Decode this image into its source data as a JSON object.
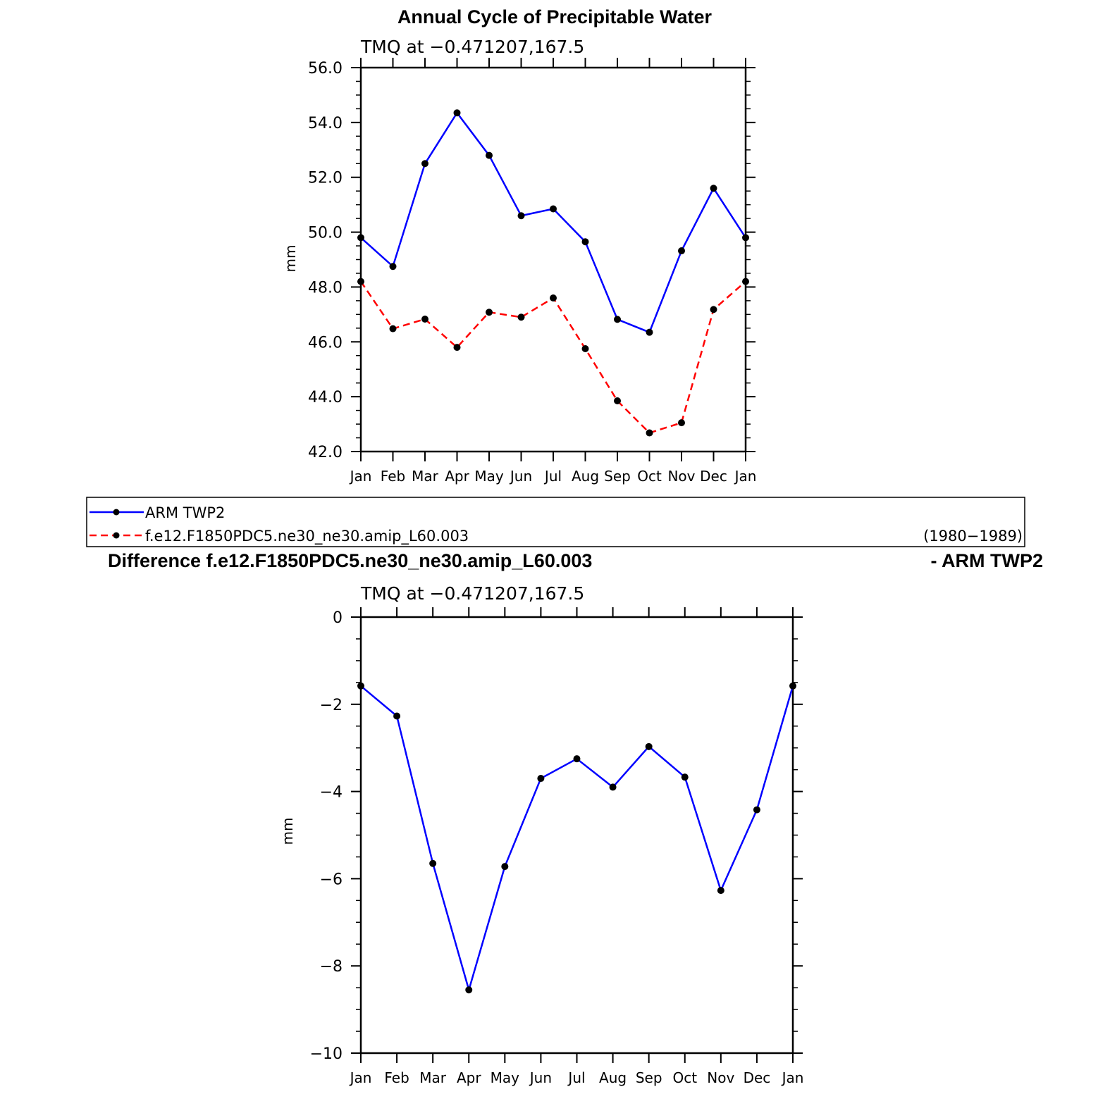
{
  "chart_data": [
    {
      "type": "line",
      "title": "Annual Cycle of Precipitable Water",
      "subtitle": "TMQ at −0.471207,167.5",
      "ylabel": "mm",
      "ylim": [
        42.0,
        56.0
      ],
      "yticks": [
        "56.0",
        "54.0",
        "52.0",
        "50.0",
        "48.0",
        "46.0",
        "44.0",
        "42.0"
      ],
      "categories": [
        "Jan",
        "Feb",
        "Mar",
        "Apr",
        "May",
        "Jun",
        "Jul",
        "Aug",
        "Sep",
        "Oct",
        "Nov",
        "Dec",
        "Jan"
      ],
      "series": [
        {
          "name": "ARM TWP2",
          "color": "#0000ff",
          "dash": "solid",
          "values": [
            49.8,
            48.75,
            52.5,
            54.35,
            52.8,
            50.6,
            50.85,
            49.65,
            46.82,
            46.35,
            49.32,
            51.6,
            49.8
          ]
        },
        {
          "name": "f.e12.F1850PDC5.ne30_ne30.amip_L60.003",
          "color": "#ff0000",
          "dash": "dashed",
          "values": [
            48.2,
            46.48,
            46.83,
            45.8,
            47.08,
            46.9,
            47.6,
            45.75,
            43.85,
            42.68,
            43.05,
            47.18,
            48.2
          ]
        }
      ],
      "legend": {
        "placement": "bottom",
        "entries": [
          "ARM TWP2",
          "f.e12.F1850PDC5.ne30_ne30.amip_L60.003"
        ],
        "period": "(1980−1989)"
      }
    },
    {
      "type": "line",
      "title_left": "Difference f.e12.F1850PDC5.ne30_ne30.amip_L60.003",
      "title_right": "- ARM TWP2",
      "subtitle": "TMQ at −0.471207,167.5",
      "ylabel": "mm",
      "ylim": [
        -10,
        0
      ],
      "yticks": [
        "0",
        "−2",
        "−4",
        "−6",
        "−8",
        "−10"
      ],
      "categories": [
        "Jan",
        "Feb",
        "Mar",
        "Apr",
        "May",
        "Jun",
        "Jul",
        "Aug",
        "Sep",
        "Oct",
        "Nov",
        "Dec",
        "Jan"
      ],
      "series": [
        {
          "color": "#0000ff",
          "dash": "solid",
          "values": [
            -1.58,
            -2.27,
            -5.65,
            -8.55,
            -5.72,
            -3.7,
            -3.25,
            -3.9,
            -2.97,
            -3.67,
            -6.27,
            -4.42,
            -1.58
          ]
        }
      ]
    }
  ]
}
